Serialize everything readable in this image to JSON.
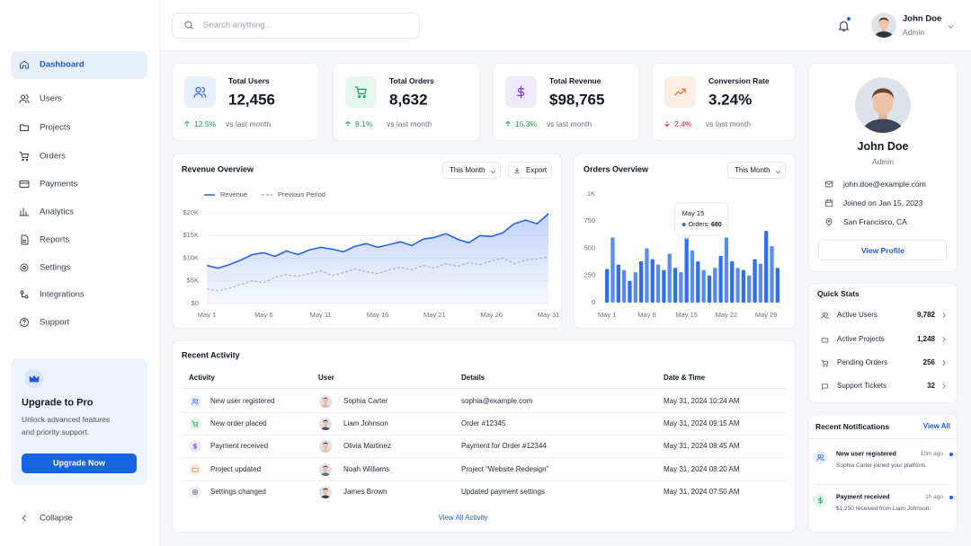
{
  "search_placeholder": "Search anything...",
  "user": {
    "name": "John Doe",
    "role": "Admin"
  },
  "nav": [
    "Dashboard",
    "Users",
    "Projects",
    "Orders",
    "Payments",
    "Analytics",
    "Reports",
    "Settings",
    "Integrations",
    "Support"
  ],
  "upgrade": {
    "title": "Upgrade to Pro",
    "text": [
      "Unlock advanced features",
      "and priority support."
    ],
    "button": "Upgrade Now"
  },
  "collapse": "Collapse",
  "stats": [
    {
      "label": "Total Users",
      "value": "12,456",
      "change": "12.5%",
      "direction": "up",
      "note": "vs last month"
    },
    {
      "label": "Total Orders",
      "value": "8,632",
      "change": "8.1%",
      "direction": "up",
      "note": "vs last month"
    },
    {
      "label": "Total Revenue",
      "value": "$98,765",
      "change": "15.3%",
      "direction": "up",
      "note": "vs last month"
    },
    {
      "label": "Conversion Rate",
      "value": "3.24%",
      "change": "2.4%",
      "direction": "down",
      "note": "vs last month"
    }
  ],
  "chart_data": [
    {
      "type": "line",
      "title": "Revenue Overview",
      "filter": "This Month",
      "action": "Export",
      "categories": [
        "May 1",
        null,
        null,
        null,
        null,
        "May 6",
        null,
        null,
        null,
        null,
        "May 11",
        null,
        null,
        null,
        null,
        "May 16",
        null,
        null,
        null,
        null,
        "May 21",
        null,
        null,
        null,
        null,
        "May 26",
        null,
        null,
        null,
        null,
        "May 31"
      ],
      "series": [
        {
          "name": "Revenue",
          "color": "#2563eb",
          "values": [
            8400,
            7800,
            8600,
            9600,
            10800,
            11200,
            10400,
            11600,
            10800,
            11800,
            12400,
            12000,
            11400,
            12600,
            13200,
            12400,
            13000,
            13600,
            12800,
            14200,
            14600,
            15400,
            14200,
            13400,
            15000,
            14800,
            15600,
            17600,
            18400,
            17600,
            19800
          ]
        },
        {
          "name": "Previous Period",
          "color": "#9bb7ee",
          "dashed": true,
          "values": [
            3200,
            2800,
            3400,
            4200,
            5000,
            4600,
            5800,
            6400,
            6000,
            6600,
            7200,
            6200,
            6800,
            7600,
            7000,
            6600,
            7400,
            8000,
            7400,
            8400,
            7800,
            8800,
            8200,
            9000,
            8600,
            9400,
            10000,
            8800,
            9600,
            9800,
            10400
          ]
        }
      ],
      "ylim": [
        0,
        20000
      ],
      "yticks": [
        {
          "value": 0,
          "label": "$0"
        },
        {
          "value": 5000,
          "label": "$5K"
        },
        {
          "value": 10000,
          "label": "$10K"
        },
        {
          "value": 15000,
          "label": "$15K"
        },
        {
          "value": 20000,
          "label": "$20K"
        }
      ],
      "grid": true
    },
    {
      "type": "bar",
      "title": "Orders Overview",
      "filter": "This Month",
      "categories": [
        "May 1",
        null,
        null,
        null,
        null,
        null,
        null,
        "May 8",
        null,
        null,
        null,
        null,
        null,
        null,
        "May 15",
        null,
        null,
        null,
        null,
        null,
        null,
        "May 22",
        null,
        null,
        null,
        null,
        null,
        null,
        "May 29",
        null,
        null
      ],
      "values": [
        310,
        600,
        350,
        300,
        200,
        280,
        380,
        500,
        400,
        350,
        300,
        450,
        320,
        280,
        680,
        480,
        380,
        300,
        250,
        320,
        430,
        600,
        380,
        320,
        300,
        250,
        400,
        360,
        660,
        520,
        320
      ],
      "color": "#2f6fe8",
      "ylim": [
        0,
        1000
      ],
      "yticks": [
        0,
        250,
        500,
        750,
        {
          "value": 1000,
          "label": "1K"
        }
      ],
      "grid": false,
      "tooltip": {
        "label": "Orders:"
      }
    }
  ],
  "profile": {
    "name": "John Doe",
    "role": "Admin",
    "email": "john.doe@example.com",
    "joined": "Joined on Jan 15, 2023",
    "location": "San Francisco, CA",
    "button": "View Profile"
  },
  "quick_stats": {
    "title": "Quick Stats",
    "items": [
      {
        "label": "Active Users",
        "value": "9,782"
      },
      {
        "label": "Active Projects",
        "value": "1,248"
      },
      {
        "label": "Pending Orders",
        "value": "256"
      },
      {
        "label": "Support Tickets",
        "value": "32"
      }
    ]
  },
  "notifications": {
    "title": "Recent Notifications",
    "link": "View All",
    "items": [
      {
        "title": "New user registered",
        "time": "10m ago",
        "text": "Sophia Carter joined your platform."
      },
      {
        "title": "Payment received",
        "time": "1h ago",
        "text": "$1,250 received from Liam Johnson."
      }
    ]
  },
  "activity": {
    "title": "Recent Activity",
    "columns": [
      "Activity",
      "User",
      "Details",
      "Date & Time"
    ],
    "rows": [
      [
        "New user registered",
        "Sophia Carter",
        "sophia@example.com",
        "May 31, 2024 10:24 AM"
      ],
      [
        "New order placed",
        "Liam Johnson",
        "Order #12345",
        "May 31, 2024 09:15 AM"
      ],
      [
        "Payment received",
        "Olivia Martinez",
        "Payment for Order #12344",
        "May 31, 2024 08:45 AM"
      ],
      [
        "Project updated",
        "Noah Williams",
        "Project “Website Redesign”",
        "May 31, 2024 08:20 AM"
      ],
      [
        "Settings changed",
        "James Brown",
        "Updated payment settings",
        "May 31, 2024 07:50 AM"
      ]
    ],
    "link": "View All Activity"
  }
}
